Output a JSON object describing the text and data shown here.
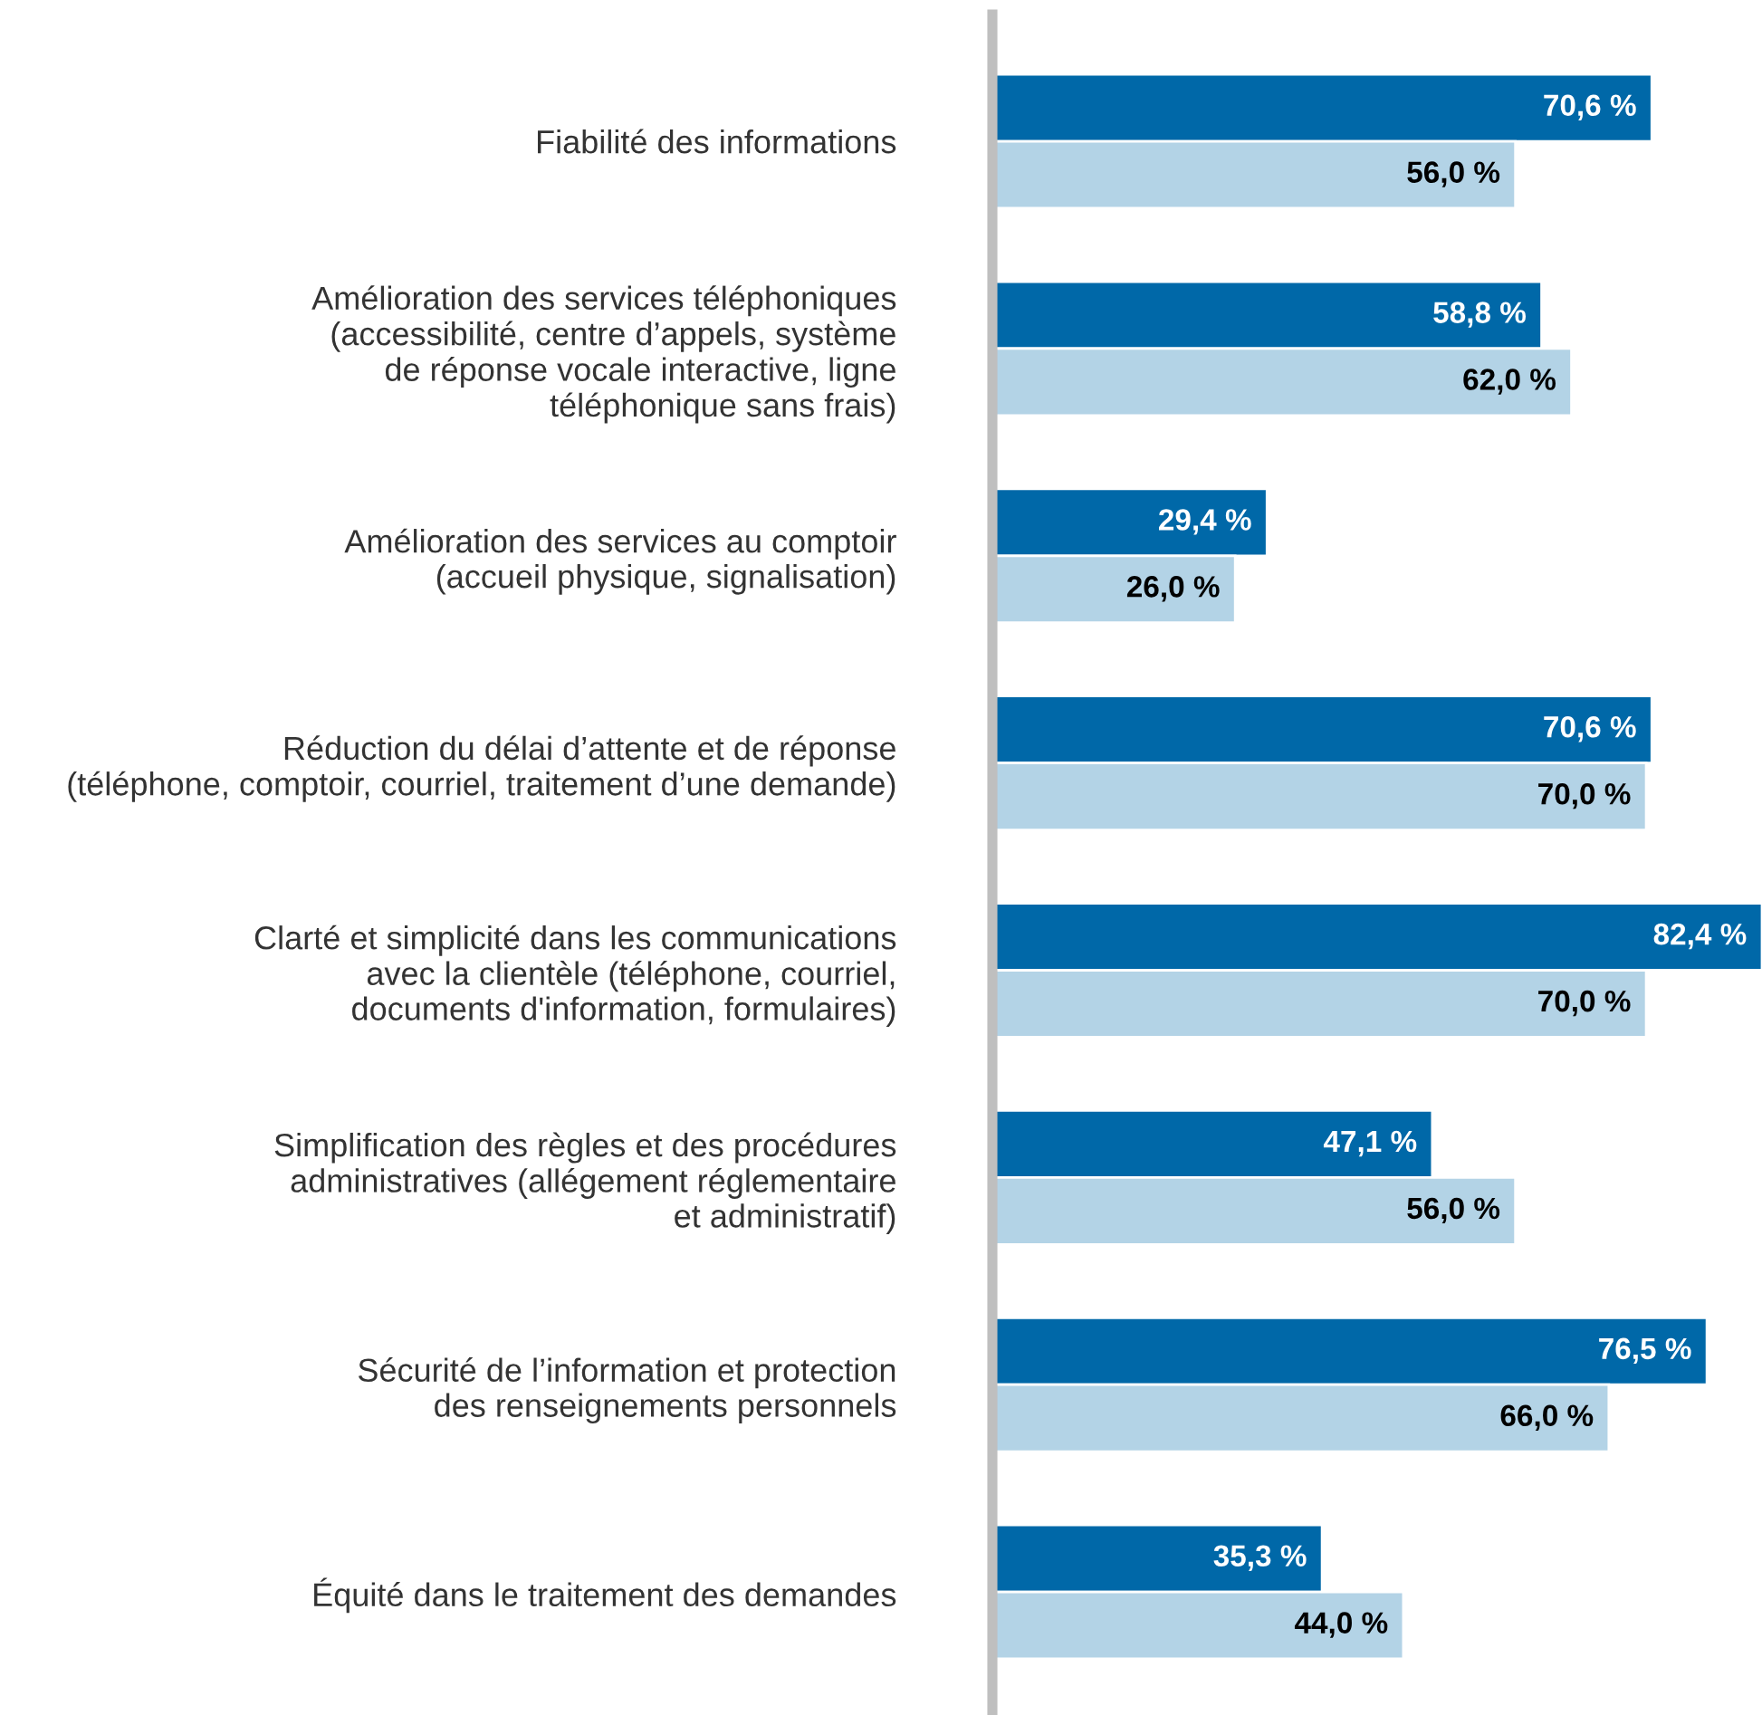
{
  "chart_data": {
    "type": "bar",
    "orientation": "horizontal",
    "categories": [
      "Fiabilité des informations",
      "Amélioration des services téléphoniques\n(accessibilité, centre d’appels, système\nde réponse vocale interactive, ligne\ntéléphonique sans frais)",
      "Amélioration des services au comptoir\n(accueil physique, signalisation)",
      "Réduction du délai d’attente et de réponse\n(téléphone, comptoir, courriel, traitement d’une demande)",
      "Clarté et simplicité dans les communications\navec la clientèle (téléphone, courriel,\ndocuments d'information, formulaires)",
      "Simplification des règles et des procédures\nadministratives (allégement réglementaire\net administratif)",
      "Sécurité de l’information et protection\ndes renseignements personnels",
      "Équité dans le traitement des demandes"
    ],
    "series": [
      {
        "color": "#0068a8",
        "values": [
          70.6,
          58.8,
          29.4,
          70.6,
          82.4,
          47.1,
          76.5,
          35.3
        ],
        "value_labels": [
          "70,6 %",
          "58,8 %",
          "29,4 %",
          "70,6 %",
          "82,4 %",
          "47,1 %",
          "76,5 %",
          "35,3 %"
        ]
      },
      {
        "color": "#b3d3e6",
        "values": [
          56.0,
          62.0,
          26.0,
          70.0,
          70.0,
          56.0,
          66.0,
          44.0
        ],
        "value_labels": [
          "56,0 %",
          "62,0 %",
          "26,0 %",
          "70,0 %",
          "70,0 %",
          "56,0 %",
          "66,0 %",
          "44,0 %"
        ]
      }
    ]
  }
}
